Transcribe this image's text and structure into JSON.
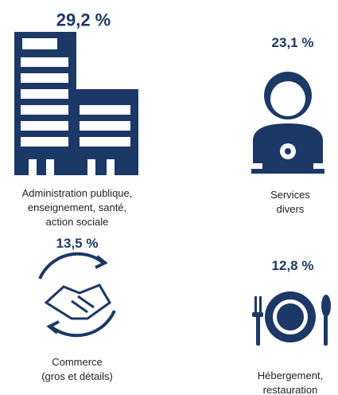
{
  "items": [
    {
      "value": "29,2 %",
      "label": [
        "Administration publique,",
        "enseignement, santé,",
        "action sociale"
      ]
    },
    {
      "value": "23,1 %",
      "label": [
        "Services",
        "divers"
      ]
    },
    {
      "value": "13,5 %",
      "label": [
        "Commerce",
        "(gros et détails)"
      ]
    },
    {
      "value": "12,8 %",
      "label": [
        "Hébergement,",
        "restauration"
      ]
    }
  ]
}
